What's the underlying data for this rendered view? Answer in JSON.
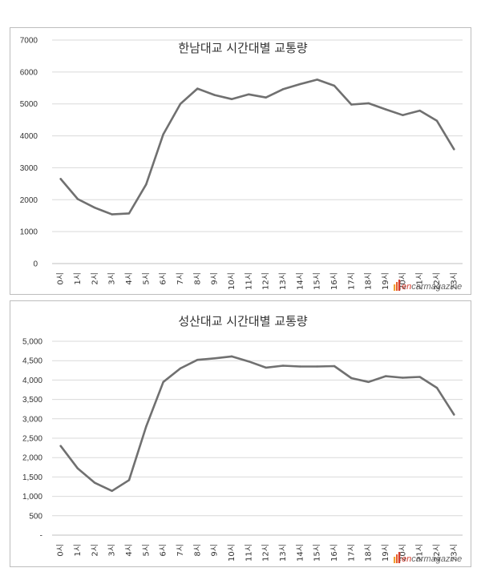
{
  "chart_data": [
    {
      "type": "line",
      "title": "한남대교 시간대별 교통량",
      "xlabel": "",
      "ylabel": "",
      "categories": [
        "0시",
        "1시",
        "2시",
        "3시",
        "4시",
        "5시",
        "6시",
        "7시",
        "8시",
        "9시",
        "10시",
        "11시",
        "12시",
        "13시",
        "14시",
        "15시",
        "16시",
        "17시",
        "18시",
        "19시",
        "20시",
        "21시",
        "22시",
        "23시"
      ],
      "yticks": [
        "0",
        "1000",
        "2000",
        "3000",
        "4000",
        "5000",
        "6000",
        "7000"
      ],
      "ylim": [
        0,
        7000
      ],
      "grid": true,
      "series": [
        {
          "name": "한남대교",
          "color": "#707070",
          "values": [
            2650,
            2020,
            1750,
            1540,
            1570,
            2480,
            4050,
            5000,
            5480,
            5280,
            5150,
            5300,
            5200,
            5460,
            5620,
            5760,
            5570,
            4980,
            5020,
            4830,
            4650,
            4790,
            4470,
            3580
          ]
        }
      ]
    },
    {
      "type": "line",
      "title": "성산대교 시간대별 교통량",
      "xlabel": "",
      "ylabel": "",
      "categories": [
        "0시",
        "1시",
        "2시",
        "3시",
        "4시",
        "5시",
        "6시",
        "7시",
        "8시",
        "9시",
        "10시",
        "11시",
        "12시",
        "13시",
        "14시",
        "15시",
        "16시",
        "17시",
        "18시",
        "19시",
        "20시",
        "21시",
        "22시",
        "23시"
      ],
      "yticks": [
        "-",
        "500",
        "1,000",
        "1,500",
        "2,000",
        "2,500",
        "3,000",
        "3,500",
        "4,000",
        "4,500",
        "5,000"
      ],
      "ylim": [
        0,
        5000
      ],
      "grid": true,
      "series": [
        {
          "name": "성산대교",
          "color": "#707070",
          "values": [
            2300,
            1720,
            1350,
            1140,
            1420,
            2800,
            3950,
            4300,
            4520,
            4560,
            4610,
            4480,
            4320,
            4370,
            4350,
            4350,
            4360,
            4050,
            3950,
            4100,
            4060,
            4080,
            3800,
            3110
          ]
        }
      ]
    }
  ],
  "watermark": {
    "prefix": "en",
    "text": "carmagazine"
  }
}
